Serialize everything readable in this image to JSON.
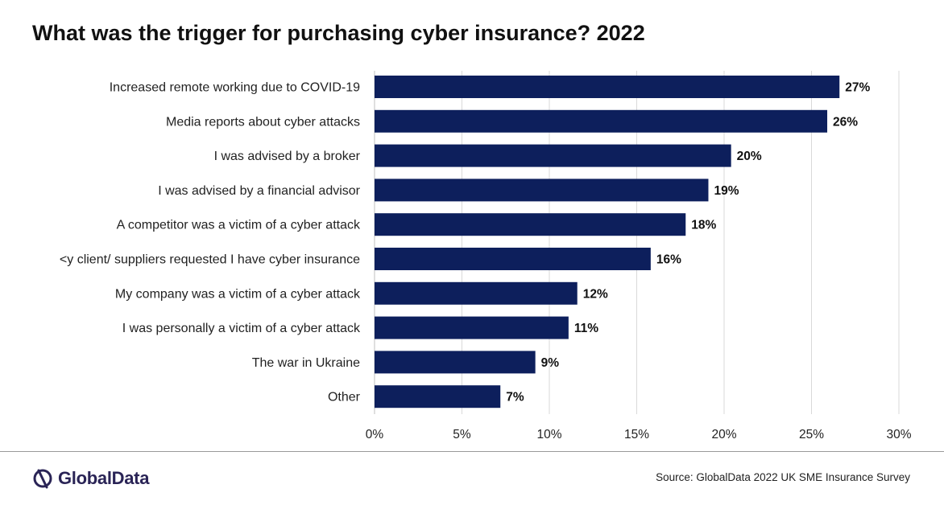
{
  "title": "What was the trigger for purchasing cyber insurance? 2022",
  "source": "Source: GlobalData 2022 UK SME Insurance Survey",
  "logo": {
    "text": "GlobalData",
    "icon": "globaldata-logo-icon"
  },
  "colors": {
    "bar": "#0d1f5c",
    "grid": "#d9d9d9",
    "logo": "#2a2456"
  },
  "chart_data": {
    "type": "bar",
    "orientation": "horizontal",
    "categories": [
      "Increased remote working due to COVID-19",
      "Media reports about cyber attacks",
      "I was advised by a broker",
      "I was advised by a financial advisor",
      "A competitor was a victim of a cyber attack",
      "<y client/ suppliers requested I have cyber insurance",
      "My company was a victim of a cyber attack",
      "I was personally a victim of a cyber attack",
      "The war in Ukraine",
      "Other"
    ],
    "values": [
      26.6,
      25.9,
      20.4,
      19.1,
      17.8,
      15.8,
      11.6,
      11.1,
      9.2,
      7.2
    ],
    "value_labels": [
      "27%",
      "26%",
      "20%",
      "19%",
      "18%",
      "16%",
      "12%",
      "11%",
      "9%",
      "7%"
    ],
    "xlim": [
      0,
      30
    ],
    "xticks": [
      0,
      5,
      10,
      15,
      20,
      25,
      30
    ],
    "xtick_labels": [
      "0%",
      "5%",
      "10%",
      "15%",
      "20%",
      "25%",
      "30%"
    ],
    "grid": true,
    "legend": "none"
  }
}
